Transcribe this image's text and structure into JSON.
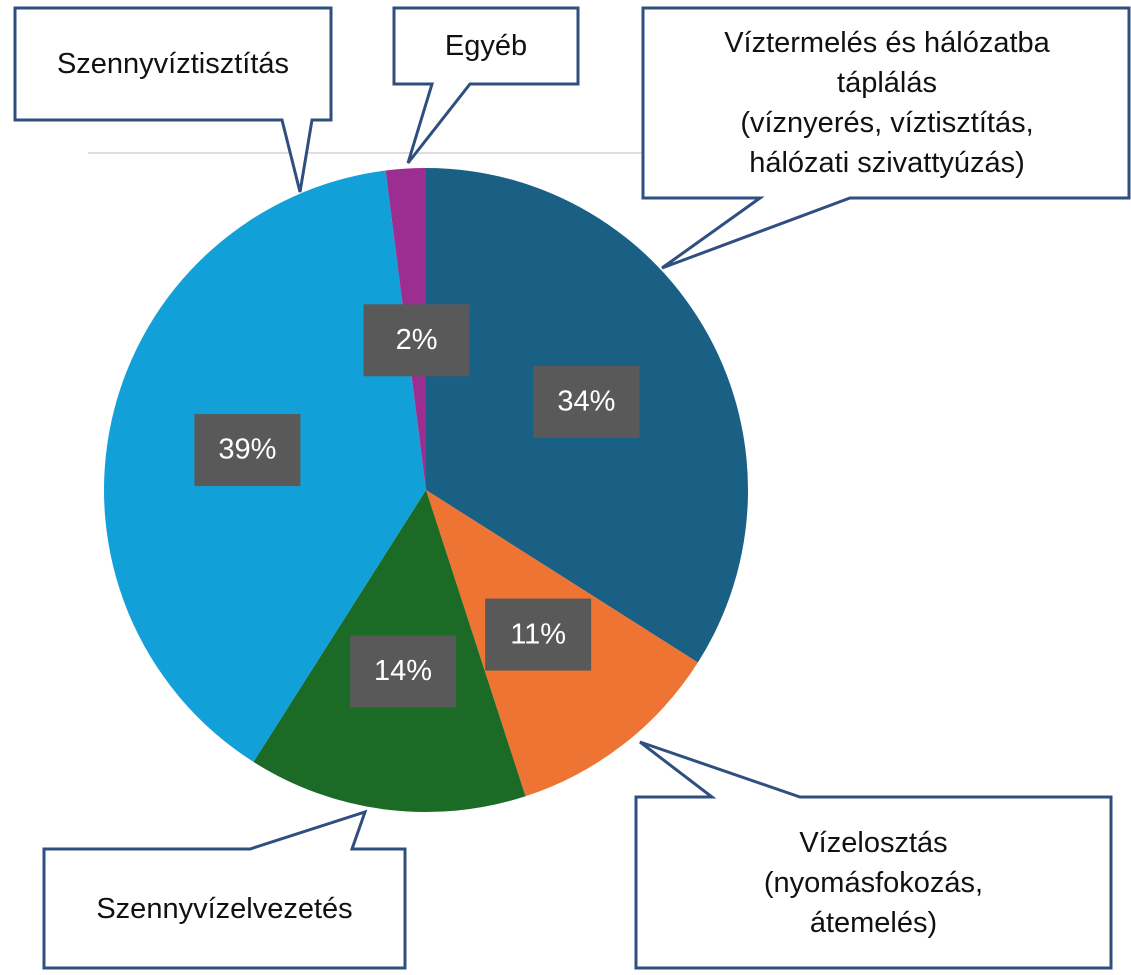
{
  "chart_data": {
    "type": "pie",
    "categories": [
      "Víztermelés és hálózatba\ntáplálás\n(víznyerés, víztisztítás,\nhálózati szivattyúzás)",
      "Vízelosztás\n(nyomásfokozás,\nátemelés)",
      "Szennyvízelvezetés",
      "Szennyvíztisztítás",
      "Egyéb"
    ],
    "values": [
      34,
      11,
      14,
      39,
      2
    ],
    "value_labels": [
      "34%",
      "11%",
      "14%",
      "39%",
      "2%"
    ],
    "colors": [
      "#1a6085",
      "#ed7432",
      "#1b6b27",
      "#12a0d8",
      "#9c2d91"
    ]
  }
}
